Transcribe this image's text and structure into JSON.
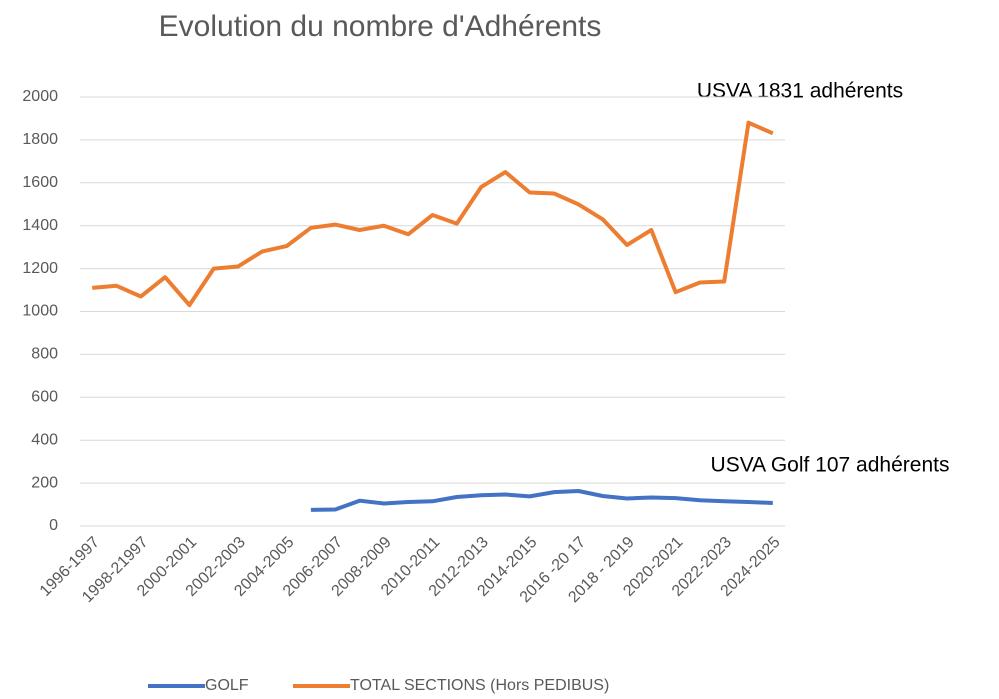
{
  "chart_data": {
    "type": "line",
    "title": "Evolution du nombre d'Adhérents",
    "categories": [
      "1996-1997",
      null,
      "1998-21997",
      null,
      "2000-2001",
      null,
      "2002-2003",
      null,
      "2004-2005",
      null,
      "2006-2007",
      null,
      "2008-2009",
      null,
      "2010-2011",
      null,
      "2012-2013",
      null,
      "2014-2015",
      null,
      "2016 -20 17",
      null,
      "2018 - 2019",
      null,
      "2020-2021",
      null,
      "2022-2023",
      null,
      "2024-2025"
    ],
    "series": [
      {
        "name": "GOLF",
        "color": "#4472c4",
        "values": [
          null,
          null,
          null,
          null,
          null,
          null,
          null,
          null,
          null,
          75,
          77,
          118,
          105,
          112,
          115,
          135,
          143,
          147,
          138,
          158,
          163,
          140,
          128,
          133,
          130,
          120,
          115,
          112,
          107
        ]
      },
      {
        "name": "TOTAL SECTIONS (Hors PEDIBUS)",
        "color": "#ed7d31",
        "values": [
          1110,
          1120,
          1070,
          1160,
          1030,
          1200,
          1210,
          1280,
          1305,
          1390,
          1405,
          1380,
          1400,
          1360,
          1450,
          1410,
          1580,
          1650,
          1555,
          1550,
          1500,
          1430,
          1310,
          1380,
          1090,
          1135,
          1140,
          1880,
          1831
        ]
      }
    ],
    "ylim": [
      0,
      2000
    ],
    "yticks": [
      0,
      200,
      400,
      600,
      800,
      1000,
      1200,
      1400,
      1600,
      1800,
      2000
    ],
    "grid": true,
    "legend": "bottom",
    "annotations": [
      "USVA 1831 adhérents",
      "USVA Golf 107 adhérents"
    ]
  }
}
